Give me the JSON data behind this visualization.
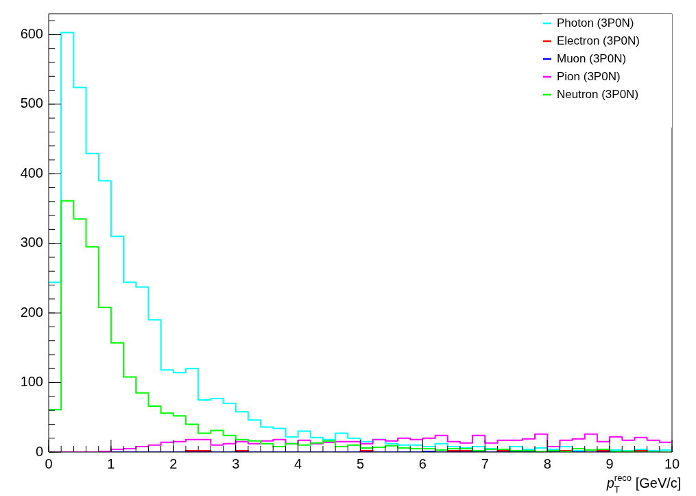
{
  "chart_data": {
    "type": "histogram",
    "xlabel": "p$^{reco}$$_{T}$ [GeV/c]",
    "bins": [
      0,
      0.2,
      0.4,
      0.6,
      0.8,
      1,
      1.2,
      1.4,
      1.6,
      1.8,
      2,
      2.2,
      2.4,
      2.6,
      2.8,
      3,
      3.2,
      3.4,
      3.6,
      3.8,
      4,
      4.2,
      4.4,
      4.6,
      4.8,
      5,
      5.2,
      5.4,
      5.6,
      5.8,
      6,
      6.2,
      6.4,
      6.6,
      6.8,
      7,
      7.2,
      7.4,
      7.6,
      7.8,
      8,
      8.2,
      8.4,
      8.6,
      8.8,
      9,
      9.2,
      9.4,
      9.6,
      9.8,
      10
    ],
    "series": [
      {
        "name": "Photon (3P0N)",
        "color": "#00ffff",
        "values": [
          244,
          603,
          524,
          429,
          390,
          310,
          244,
          237,
          190,
          118,
          114,
          120,
          75,
          77,
          70,
          58,
          46,
          36,
          34,
          22,
          30,
          21,
          18,
          27,
          20,
          15,
          18,
          12,
          10,
          10,
          8,
          12,
          8,
          6,
          8,
          5,
          4,
          8,
          4,
          6,
          4,
          8,
          2,
          3,
          2,
          3,
          2,
          4,
          2,
          3
        ]
      },
      {
        "name": "Electron (3P0N)",
        "color": "#ff0000",
        "values": [
          0,
          0,
          0,
          0,
          0,
          0,
          0,
          0,
          0,
          0,
          0,
          2,
          2,
          0,
          0,
          2,
          0,
          0,
          0,
          0,
          0,
          0,
          0,
          0,
          0,
          2,
          0,
          0,
          0,
          0,
          0,
          0,
          2,
          2,
          2,
          0,
          2,
          2,
          0,
          0,
          2,
          2,
          0,
          0,
          2,
          0,
          0,
          2,
          0,
          0
        ]
      },
      {
        "name": "Muon (3P0N)",
        "color": "#0000ff",
        "values": [
          0,
          0,
          0,
          0,
          0,
          0,
          0,
          0,
          0,
          0,
          0,
          0,
          0,
          0,
          0,
          0,
          0,
          0,
          0,
          0,
          0,
          0,
          0,
          0,
          0,
          0,
          0,
          0,
          0,
          0,
          1,
          0,
          0,
          0,
          0,
          0,
          0,
          0,
          0,
          0,
          1,
          1,
          0,
          0,
          0,
          0,
          0,
          0,
          0,
          0
        ]
      },
      {
        "name": "Pion (3P0N)",
        "color": "#ff00ff",
        "values": [
          0,
          0,
          0,
          0,
          1,
          4,
          5,
          8,
          10,
          14,
          15,
          18,
          18,
          10,
          12,
          15,
          12,
          16,
          18,
          12,
          17,
          12,
          14,
          15,
          15,
          12,
          18,
          16,
          20,
          18,
          20,
          24,
          15,
          13,
          24,
          13,
          17,
          17,
          19,
          26,
          8,
          17,
          19,
          26,
          15,
          22,
          17,
          21,
          17,
          14
        ]
      },
      {
        "name": "Neutron (3P0N)",
        "color": "#00ff00",
        "values": [
          61,
          361,
          335,
          295,
          208,
          157,
          108,
          85,
          66,
          56,
          52,
          40,
          27,
          31,
          24,
          18,
          16,
          12,
          8,
          12,
          10,
          13,
          16,
          8,
          10,
          6,
          7,
          9,
          6,
          5,
          5,
          3,
          5,
          5,
          2,
          4,
          4,
          2,
          2,
          1,
          2,
          1,
          5,
          3,
          4,
          1,
          1,
          0,
          0,
          0
        ]
      }
    ],
    "xlim": [
      0,
      10
    ],
    "xticks": [
      0,
      1,
      2,
      3,
      4,
      5,
      6,
      7,
      8,
      9,
      10
    ],
    "ylim": [
      0,
      630
    ],
    "yticks": [
      0,
      100,
      200,
      300,
      400,
      500,
      600
    ],
    "legend": "top right"
  }
}
